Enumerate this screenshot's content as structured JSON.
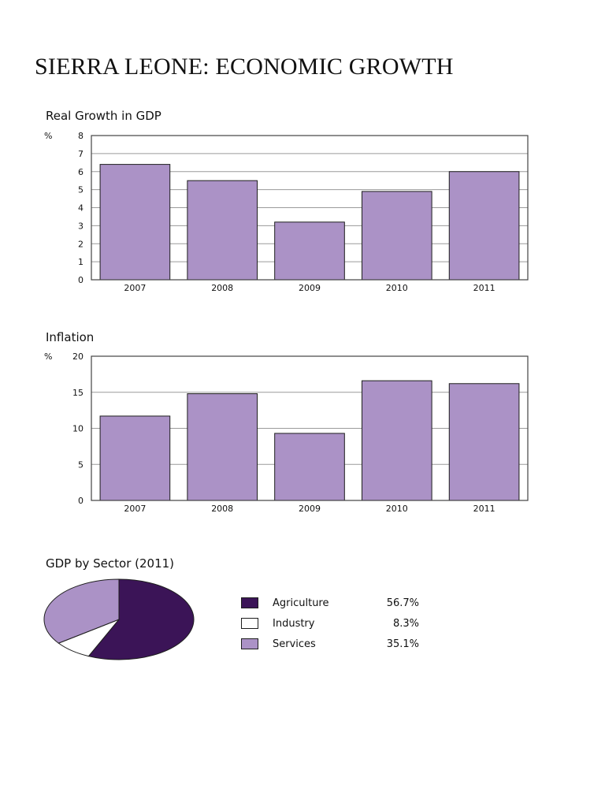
{
  "page_title": "SIERRA LEONE: ECONOMIC GROWTH",
  "chart_data": [
    {
      "type": "bar",
      "title": "Real Growth in GDP",
      "ylabel": "%",
      "xlabel": "",
      "categories": [
        "2007",
        "2008",
        "2009",
        "2010",
        "2011"
      ],
      "values": [
        6.4,
        5.5,
        3.2,
        4.9,
        6.0
      ],
      "ylim": [
        0,
        8
      ],
      "yticks": [
        0,
        1,
        2,
        3,
        4,
        5,
        6,
        7,
        8
      ],
      "grid": true,
      "bar_color": "#ab92c6"
    },
    {
      "type": "bar",
      "title": "Inflation",
      "ylabel": "%",
      "xlabel": "",
      "categories": [
        "2007",
        "2008",
        "2009",
        "2010",
        "2011"
      ],
      "values": [
        11.7,
        14.8,
        9.3,
        16.6,
        16.2
      ],
      "ylim": [
        0,
        20
      ],
      "yticks": [
        0,
        5,
        10,
        15,
        20
      ],
      "grid": true,
      "bar_color": "#ab92c6"
    },
    {
      "type": "pie",
      "title": "GDP by Sector (2011)",
      "slices": [
        {
          "label": "Agriculture",
          "value": 56.7,
          "display": "56.7%",
          "color": "#3b1457"
        },
        {
          "label": "Industry",
          "value": 8.3,
          "display": "8.3%",
          "color": "#ffffff"
        },
        {
          "label": "Services",
          "value": 35.1,
          "display": "35.1%",
          "color": "#ab92c6"
        }
      ],
      "legend": "right"
    }
  ]
}
